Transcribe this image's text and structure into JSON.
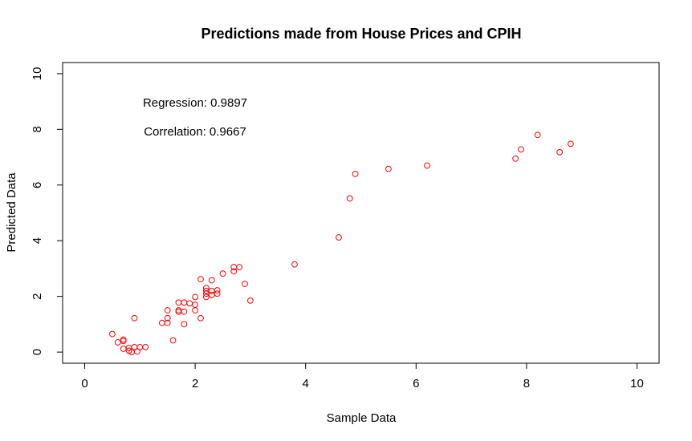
{
  "chart_data": {
    "type": "scatter",
    "title": "Predictions made from House Prices and CPIH",
    "xlabel": "Sample Data",
    "ylabel": "Predicted Data",
    "xlim": [
      -0.4,
      10.4
    ],
    "ylim": [
      -0.4,
      10.4
    ],
    "xticks": [
      "0",
      "2",
      "4",
      "6",
      "8",
      "10"
    ],
    "yticks": [
      "0",
      "2",
      "4",
      "6",
      "8",
      "10"
    ],
    "grid": false,
    "marker_color": "#ff0000",
    "annotations": {
      "regression": "Regression: 0.9897",
      "correlation": "Correlation: 0.9667"
    },
    "points": [
      [
        0.5,
        0.65
      ],
      [
        0.6,
        0.35
      ],
      [
        0.7,
        0.45
      ],
      [
        0.7,
        0.4
      ],
      [
        0.7,
        0.12
      ],
      [
        0.8,
        0.15
      ],
      [
        0.8,
        0.05
      ],
      [
        0.85,
        0.0
      ],
      [
        0.9,
        0.18
      ],
      [
        0.95,
        0.02
      ],
      [
        0.9,
        1.22
      ],
      [
        1.0,
        0.18
      ],
      [
        1.1,
        0.18
      ],
      [
        1.4,
        1.05
      ],
      [
        1.5,
        1.05
      ],
      [
        1.5,
        1.22
      ],
      [
        1.5,
        1.5
      ],
      [
        1.6,
        0.42
      ],
      [
        1.7,
        1.45
      ],
      [
        1.7,
        1.5
      ],
      [
        1.7,
        1.78
      ],
      [
        1.8,
        1.78
      ],
      [
        1.8,
        1.45
      ],
      [
        1.8,
        1.0
      ],
      [
        1.9,
        1.75
      ],
      [
        2.0,
        1.98
      ],
      [
        2.0,
        1.7
      ],
      [
        2.0,
        1.5
      ],
      [
        2.1,
        2.62
      ],
      [
        2.1,
        1.22
      ],
      [
        2.2,
        2.3
      ],
      [
        2.2,
        2.2
      ],
      [
        2.2,
        2.1
      ],
      [
        2.2,
        1.98
      ],
      [
        2.3,
        2.58
      ],
      [
        2.3,
        2.2
      ],
      [
        2.3,
        2.05
      ],
      [
        2.4,
        2.22
      ],
      [
        2.4,
        2.1
      ],
      [
        2.5,
        2.82
      ],
      [
        2.7,
        3.05
      ],
      [
        2.7,
        2.9
      ],
      [
        2.8,
        3.05
      ],
      [
        2.9,
        2.45
      ],
      [
        3.0,
        1.85
      ],
      [
        3.8,
        3.15
      ],
      [
        4.6,
        4.12
      ],
      [
        4.8,
        5.52
      ],
      [
        4.9,
        6.4
      ],
      [
        5.5,
        6.58
      ],
      [
        6.2,
        6.7
      ],
      [
        7.8,
        6.95
      ],
      [
        7.9,
        7.28
      ],
      [
        8.2,
        7.8
      ],
      [
        8.6,
        7.18
      ],
      [
        8.8,
        7.48
      ]
    ]
  }
}
